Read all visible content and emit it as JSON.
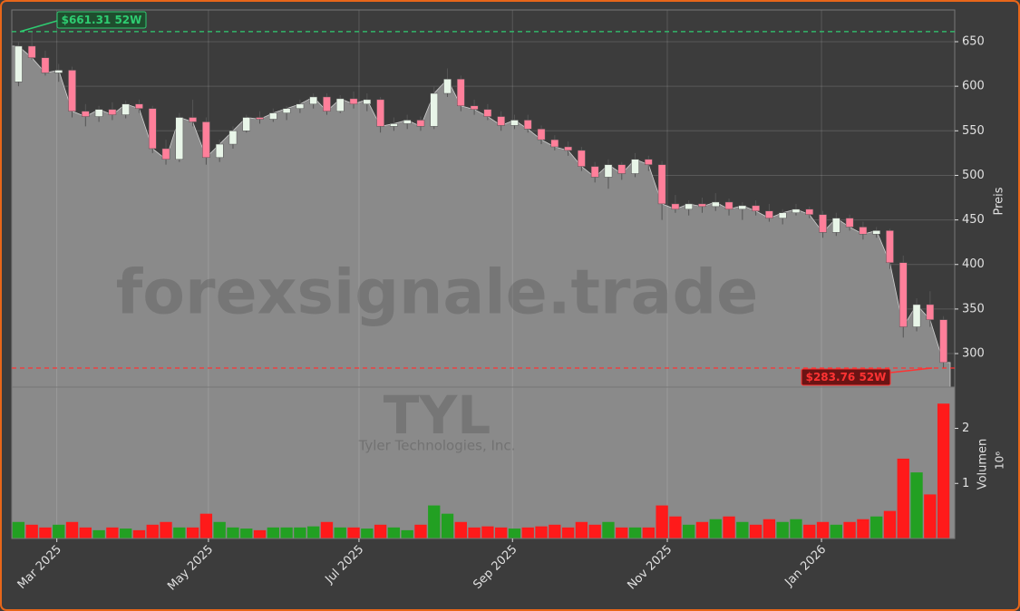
{
  "chart_data": {
    "type": "candlestick",
    "categories": [
      null,
      null,
      null,
      null,
      null,
      null,
      null,
      null,
      null,
      null,
      null,
      null,
      null,
      null,
      null,
      null,
      null,
      null,
      null,
      null,
      null,
      null,
      null,
      null,
      null,
      null,
      null,
      null,
      null,
      null,
      null,
      null,
      null,
      null,
      null,
      null,
      null,
      null,
      null,
      null,
      null,
      null,
      null,
      null,
      null,
      null,
      null,
      null,
      null,
      null,
      null,
      null,
      null,
      null,
      null,
      null,
      null,
      null,
      null,
      null,
      null,
      null,
      null,
      null,
      null,
      null,
      null,
      null,
      null,
      null
    ],
    "open": [
      605,
      645,
      632,
      615,
      618,
      572,
      566,
      574,
      568,
      580,
      575,
      530,
      518,
      565,
      560,
      520,
      535,
      550,
      565,
      563,
      570,
      575,
      580,
      588,
      572,
      586,
      580,
      585,
      555,
      558,
      562,
      555,
      592,
      608,
      578,
      574,
      566,
      556,
      562,
      552,
      540,
      532,
      528,
      510,
      498,
      512,
      502,
      518,
      512,
      468,
      462,
      468,
      465,
      470,
      462,
      466,
      460,
      452,
      458,
      462,
      456,
      436,
      452,
      442,
      434,
      438,
      402,
      330,
      355,
      338
    ],
    "high": [
      650,
      661.31,
      640,
      625,
      622,
      580,
      578,
      582,
      584,
      585,
      578,
      540,
      570,
      585,
      565,
      540,
      555,
      568,
      572,
      575,
      578,
      585,
      592,
      592,
      590,
      594,
      592,
      588,
      565,
      568,
      566,
      600,
      620,
      612,
      585,
      580,
      572,
      568,
      568,
      556,
      545,
      538,
      532,
      515,
      518,
      515,
      525,
      522,
      516,
      478,
      472,
      475,
      480,
      474,
      470,
      472,
      468,
      462,
      468,
      465,
      460,
      458,
      456,
      448,
      442,
      440,
      410,
      362,
      370,
      342
    ],
    "low": [
      600,
      630,
      612,
      605,
      565,
      555,
      560,
      562,
      564,
      570,
      525,
      512,
      515,
      555,
      512,
      515,
      530,
      548,
      558,
      560,
      562,
      570,
      575,
      568,
      570,
      575,
      572,
      548,
      550,
      552,
      550,
      552,
      588,
      572,
      568,
      562,
      550,
      552,
      548,
      535,
      528,
      522,
      505,
      492,
      485,
      495,
      498,
      505,
      450,
      458,
      455,
      458,
      460,
      455,
      450,
      455,
      448,
      445,
      455,
      452,
      430,
      432,
      438,
      428,
      430,
      395,
      318,
      325,
      330,
      283.76
    ],
    "close": [
      645,
      632,
      615,
      618,
      572,
      566,
      574,
      568,
      580,
      575,
      530,
      518,
      565,
      560,
      520,
      535,
      550,
      565,
      563,
      570,
      575,
      580,
      588,
      572,
      586,
      580,
      585,
      555,
      558,
      562,
      555,
      592,
      608,
      578,
      574,
      566,
      556,
      562,
      552,
      540,
      532,
      528,
      510,
      498,
      512,
      502,
      518,
      512,
      468,
      462,
      468,
      465,
      470,
      462,
      466,
      460,
      452,
      458,
      462,
      456,
      436,
      452,
      442,
      434,
      438,
      402,
      330,
      355,
      338,
      290
    ],
    "volume": [
      0.3,
      0.25,
      0.2,
      0.25,
      0.3,
      0.2,
      0.15,
      0.2,
      0.18,
      0.15,
      0.25,
      0.3,
      0.2,
      0.2,
      0.45,
      0.3,
      0.2,
      0.18,
      0.15,
      0.2,
      0.2,
      0.2,
      0.22,
      0.3,
      0.2,
      0.2,
      0.18,
      0.25,
      0.2,
      0.15,
      0.25,
      0.6,
      0.45,
      0.3,
      0.2,
      0.22,
      0.2,
      0.18,
      0.2,
      0.22,
      0.25,
      0.2,
      0.3,
      0.25,
      0.3,
      0.2,
      0.2,
      0.2,
      0.6,
      0.4,
      0.25,
      0.3,
      0.35,
      0.4,
      0.3,
      0.25,
      0.35,
      0.3,
      0.35,
      0.25,
      0.3,
      0.25,
      0.3,
      0.35,
      0.4,
      0.5,
      1.45,
      1.2,
      0.8,
      2.45
    ],
    "up_color": "#e8f5e8",
    "down_color": "#ff7f9a",
    "volume_up_color": "#22a022",
    "volume_down_color": "#ff1a1a",
    "area_color": "#8a8a8a",
    "ylim": [
      262.4,
      685.6
    ],
    "yticks": [
      300,
      350,
      400,
      450,
      500,
      550,
      600,
      650
    ],
    "ylabel": "Preis",
    "volume_ylim": [
      0,
      2.75
    ],
    "volume_yticks": [
      1,
      2
    ],
    "volume_label": "Volumen",
    "volume_unit": "10⁶",
    "xticks": [
      {
        "value": 2.86,
        "label": "Mar 2025"
      },
      {
        "value": 14.17,
        "label": "May 2025"
      },
      {
        "value": 25.4,
        "label": "Jul 2025"
      },
      {
        "value": 36.85,
        "label": "Sep 2025"
      },
      {
        "value": 48.4,
        "label": "Nov 2025"
      },
      {
        "value": 59.9,
        "label": "Jan 2026"
      }
    ],
    "grid": true,
    "annotations": [
      {
        "text": "$661.31 52W",
        "value": 661.31,
        "color": "#2ecc71",
        "position": "top-left"
      },
      {
        "text": "$283.76 52W",
        "value": 283.76,
        "color": "#ff3333",
        "position": "bottom-right"
      }
    ],
    "watermark": "forexsignale.trade",
    "symbol": "TYL",
    "company": "Tyler Technologies, Inc."
  }
}
